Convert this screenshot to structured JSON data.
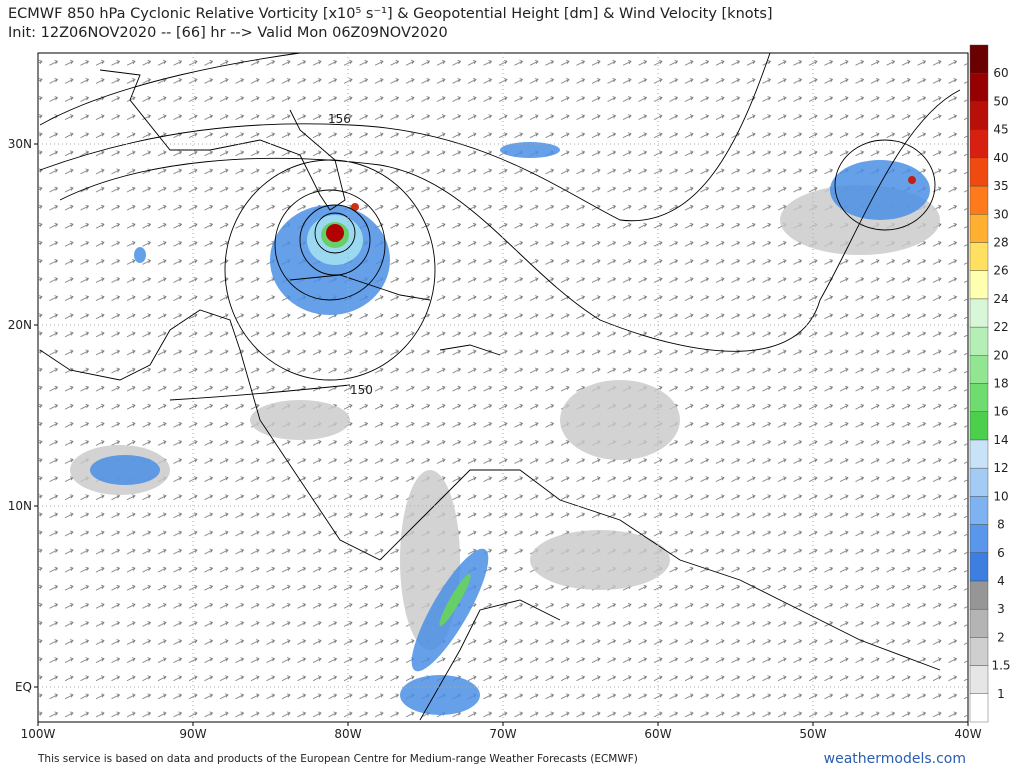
{
  "header": {
    "title": "ECMWF 850 hPa Cyclonic Relative Vorticity [x10⁵ s⁻¹] & Geopotential Height [dm] & Wind Velocity [knots]",
    "subtitle": "Init: 12Z06NOV2020 -- [66] hr --> Valid Mon 06Z09NOV2020"
  },
  "map": {
    "lat_labels": [
      "30N",
      "20N",
      "10N",
      "EQ"
    ],
    "lon_labels": [
      "100W",
      "90W",
      "80W",
      "70W",
      "60W",
      "50W",
      "40W"
    ],
    "contour_labels": [
      "156",
      "150"
    ]
  },
  "colorbar": {
    "labels": [
      1,
      1.5,
      2,
      3,
      4,
      6,
      8,
      10,
      12,
      14,
      16,
      18,
      20,
      22,
      24,
      26,
      28,
      30,
      35,
      40,
      45,
      50,
      60
    ],
    "colors": [
      "#ffffff",
      "#e6e6e6",
      "#cfcfcf",
      "#b4b4b4",
      "#969696",
      "#3c7fe0",
      "#5a97ea",
      "#7eb2f0",
      "#a4cbf4",
      "#c8e2f8",
      "#4ccf4c",
      "#6edc6e",
      "#92e692",
      "#b6efb6",
      "#d8f6d8",
      "#ffffb0",
      "#ffe060",
      "#ffb030",
      "#ff7a1a",
      "#f04a10",
      "#d82010",
      "#b81008",
      "#960000",
      "#6a0000"
    ]
  },
  "footer": {
    "credit": "This service is based on data and products of the European Centre for Medium-range Weather Forecasts (ECMWF)",
    "site": "weathermodels.com"
  }
}
